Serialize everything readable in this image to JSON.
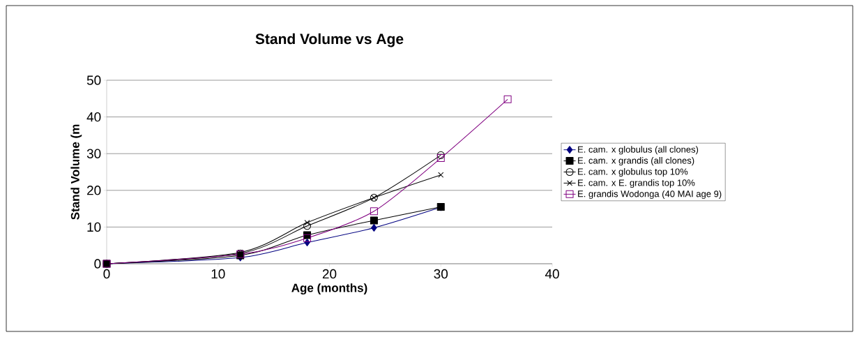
{
  "chart_data": {
    "type": "line",
    "title": "Stand Volume vs Age",
    "xlabel": "Age (months)",
    "ylabel": "Stand Volume (m",
    "xlim": [
      0,
      40
    ],
    "xticks": [
      0,
      10,
      20,
      30,
      40
    ],
    "ylim": [
      0,
      50
    ],
    "yticks": [
      0,
      10,
      20,
      30,
      40,
      50
    ],
    "grid": "y",
    "legend": "right",
    "series": [
      {
        "name": "E. cam. x globulus (all clones)",
        "color": "#000080",
        "marker": "diamond",
        "x": [
          0,
          12,
          18,
          24,
          30
        ],
        "values": [
          0,
          1.7,
          5.8,
          9.8,
          15.4
        ]
      },
      {
        "name": "E. cam. x grandis (all clones)",
        "color": "#000000",
        "marker": "square",
        "x": [
          0,
          12,
          18,
          24,
          30
        ],
        "values": [
          0,
          2.3,
          7.8,
          11.8,
          15.5
        ]
      },
      {
        "name": "E. cam. x globulus top 10%",
        "color": "#000000",
        "marker": "circle",
        "x": [
          0,
          12,
          18,
          24,
          30
        ],
        "values": [
          0,
          2.8,
          10.3,
          18,
          29.6
        ]
      },
      {
        "name": "E. cam. x E. grandis top 10%",
        "color": "#000000",
        "marker": "cross",
        "x": [
          0,
          12,
          18,
          24,
          30
        ],
        "values": [
          0,
          3.1,
          11.2,
          18,
          24.2
        ]
      },
      {
        "name": "E. grandis Wodonga (40 MAI age 9)",
        "color": "#800080",
        "marker": "square",
        "x": [
          0,
          12,
          18,
          24,
          30,
          36
        ],
        "values": [
          0,
          2.6,
          7,
          14.3,
          28.8,
          44.8
        ]
      }
    ]
  }
}
